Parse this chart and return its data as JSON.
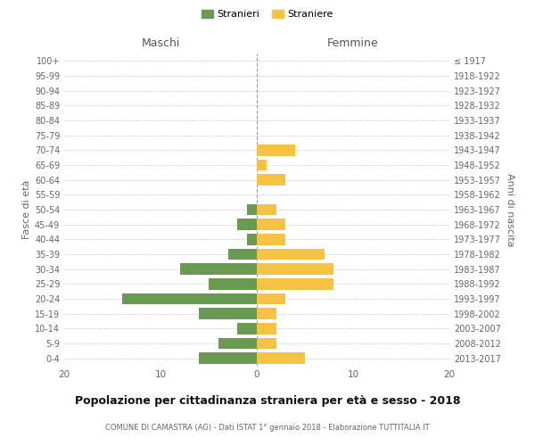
{
  "age_groups": [
    "0-4",
    "5-9",
    "10-14",
    "15-19",
    "20-24",
    "25-29",
    "30-34",
    "35-39",
    "40-44",
    "45-49",
    "50-54",
    "55-59",
    "60-64",
    "65-69",
    "70-74",
    "75-79",
    "80-84",
    "85-89",
    "90-94",
    "95-99",
    "100+"
  ],
  "birth_years": [
    "2013-2017",
    "2008-2012",
    "2003-2007",
    "1998-2002",
    "1993-1997",
    "1988-1992",
    "1983-1987",
    "1978-1982",
    "1973-1977",
    "1968-1972",
    "1963-1967",
    "1958-1962",
    "1953-1957",
    "1948-1952",
    "1943-1947",
    "1938-1942",
    "1933-1937",
    "1928-1932",
    "1923-1927",
    "1918-1922",
    "≤ 1917"
  ],
  "males": [
    6,
    4,
    2,
    6,
    14,
    5,
    8,
    3,
    1,
    2,
    1,
    0,
    0,
    0,
    0,
    0,
    0,
    0,
    0,
    0,
    0
  ],
  "females": [
    5,
    2,
    2,
    2,
    3,
    8,
    8,
    7,
    3,
    3,
    2,
    0,
    3,
    1,
    4,
    0,
    0,
    0,
    0,
    0,
    0
  ],
  "male_color": "#6a9a52",
  "female_color": "#f5c243",
  "title": "Popolazione per cittadinanza straniera per età e sesso - 2018",
  "subtitle": "COMUNE DI CAMASTRA (AG) - Dati ISTAT 1° gennaio 2018 - Elaborazione TUTTITALIA.IT",
  "xlabel_left": "Maschi",
  "xlabel_right": "Femmine",
  "ylabel_left": "Fasce di età",
  "ylabel_right": "Anni di nascita",
  "xlim": 20,
  "legend_stranieri": "Stranieri",
  "legend_straniere": "Straniere",
  "background_color": "#ffffff",
  "grid_color": "#cccccc"
}
